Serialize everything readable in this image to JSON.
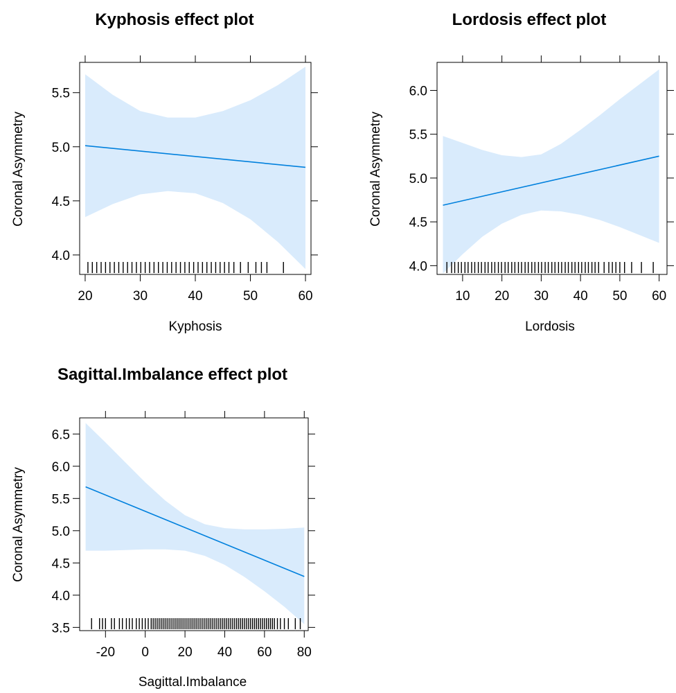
{
  "chart_data": [
    {
      "type": "line",
      "title": "Kyphosis effect plot",
      "xlabel": "Kyphosis",
      "ylabel": "Coronal Asymmetry",
      "xlim": [
        19,
        61
      ],
      "ylim": [
        3.82,
        5.78
      ],
      "xticks": [
        20,
        30,
        40,
        50,
        60
      ],
      "yticks": [
        4.0,
        4.5,
        5.0,
        5.5
      ],
      "ytick_labels": [
        "4.0",
        "4.5",
        "5.0",
        "5.5"
      ],
      "grid": false,
      "series": [
        {
          "x": [
            20,
            60
          ],
          "y": [
            5.01,
            4.81
          ]
        }
      ],
      "band": {
        "x": [
          20,
          25,
          30,
          35,
          40,
          45,
          50,
          55,
          60
        ],
        "lower": [
          4.35,
          4.47,
          4.56,
          4.59,
          4.57,
          4.48,
          4.33,
          4.12,
          3.87
        ],
        "upper": [
          5.67,
          5.48,
          5.33,
          5.27,
          5.27,
          5.33,
          5.43,
          5.57,
          5.74
        ]
      },
      "rug": [
        20.5,
        21.3,
        22.1,
        22.9,
        23.7,
        24.5,
        25.3,
        26.1,
        26.9,
        27.7,
        28.5,
        29.3,
        30.1,
        30.9,
        31.7,
        32.5,
        33.3,
        34.1,
        34.9,
        35.7,
        36.5,
        37.3,
        38.1,
        38.9,
        39.7,
        40.5,
        41.3,
        42.1,
        42.9,
        43.7,
        44.5,
        45.3,
        46.1,
        47.0,
        48.2,
        49.6,
        51.0,
        52.0,
        53.0,
        56.0
      ]
    },
    {
      "type": "line",
      "title": "Lordosis effect plot",
      "xlabel": "Lordosis",
      "ylabel": "Coronal Asymmetry",
      "xlim": [
        3.5,
        62
      ],
      "ylim": [
        3.9,
        6.32
      ],
      "xticks": [
        10,
        20,
        30,
        40,
        50,
        60
      ],
      "yticks": [
        4.0,
        4.5,
        5.0,
        5.5,
        6.0
      ],
      "ytick_labels": [
        "4.0",
        "4.5",
        "5.0",
        "5.5",
        "6.0"
      ],
      "grid": false,
      "series": [
        {
          "x": [
            5,
            60
          ],
          "y": [
            4.69,
            5.25
          ]
        }
      ],
      "band": {
        "x": [
          5,
          10,
          15,
          20,
          25,
          30,
          35,
          40,
          45,
          50,
          55,
          60
        ],
        "lower": [
          3.91,
          4.13,
          4.33,
          4.48,
          4.58,
          4.63,
          4.62,
          4.58,
          4.52,
          4.44,
          4.35,
          4.26
        ],
        "upper": [
          5.48,
          5.4,
          5.32,
          5.26,
          5.24,
          5.27,
          5.39,
          5.55,
          5.72,
          5.9,
          6.07,
          6.24
        ]
      },
      "rug": [
        6.0,
        7.2,
        8.0,
        8.9,
        9.7,
        10.6,
        11.4,
        12.3,
        13.1,
        14.0,
        14.8,
        15.7,
        16.5,
        17.4,
        18.2,
        19.1,
        19.9,
        20.8,
        21.6,
        22.5,
        23.3,
        24.2,
        25.0,
        25.9,
        26.7,
        27.6,
        28.4,
        29.3,
        30.1,
        31.0,
        31.8,
        32.7,
        33.5,
        34.4,
        35.2,
        36.1,
        36.9,
        37.8,
        38.6,
        39.5,
        40.3,
        41.2,
        42.0,
        42.9,
        43.7,
        44.6,
        46.0,
        47.2,
        48.1,
        49.0,
        50.0,
        51.2,
        53.0,
        55.5,
        58.5
      ]
    },
    {
      "type": "line",
      "title": "Sagittal.Imbalance effect plot",
      "xlabel": "Sagittal.Imbalance",
      "ylabel": "Coronal Asymmetry",
      "xlim": [
        -33,
        82
      ],
      "ylim": [
        3.45,
        6.75
      ],
      "xticks": [
        -20,
        0,
        20,
        40,
        60,
        80
      ],
      "yticks": [
        3.5,
        4.0,
        4.5,
        5.0,
        5.5,
        6.0,
        6.5
      ],
      "ytick_labels": [
        "3.5",
        "4.0",
        "4.5",
        "5.0",
        "5.5",
        "6.0",
        "6.5"
      ],
      "grid": false,
      "series": [
        {
          "x": [
            -30,
            80
          ],
          "y": [
            5.68,
            4.29
          ]
        }
      ],
      "band": {
        "x": [
          -30,
          -20,
          -10,
          0,
          10,
          20,
          30,
          40,
          50,
          60,
          70,
          80
        ],
        "lower": [
          4.69,
          4.69,
          4.7,
          4.71,
          4.71,
          4.69,
          4.61,
          4.47,
          4.28,
          4.06,
          3.82,
          3.55
        ],
        "upper": [
          6.67,
          6.37,
          6.06,
          5.75,
          5.47,
          5.24,
          5.1,
          5.04,
          5.02,
          5.02,
          5.03,
          5.05
        ]
      },
      "rug": [
        -27.0,
        -23.0,
        -21.5,
        -20.0,
        -17.0,
        -15.5,
        -13.0,
        -11.5,
        -9.5,
        -8.0,
        -6.5,
        -4.5,
        -3.0,
        -1.5,
        0.0,
        1.5,
        3.0,
        4.0,
        5.0,
        6.0,
        7.0,
        8.0,
        9.0,
        10.0,
        11.0,
        12.0,
        13.0,
        14.0,
        15.0,
        16.0,
        17.0,
        18.0,
        19.0,
        20.0,
        21.0,
        22.0,
        23.0,
        24.0,
        25.0,
        26.0,
        27.0,
        28.0,
        29.0,
        30.0,
        31.0,
        32.0,
        33.0,
        34.0,
        35.0,
        36.0,
        37.0,
        38.0,
        39.0,
        40.0,
        41.0,
        42.0,
        43.0,
        44.0,
        45.0,
        46.0,
        47.0,
        48.0,
        49.0,
        50.0,
        51.0,
        52.0,
        53.0,
        54.0,
        55.0,
        56.0,
        57.0,
        58.0,
        59.0,
        60.0,
        61.0,
        62.0,
        63.0,
        64.0,
        65.0,
        66.5,
        68.0,
        70.0,
        72.0,
        75.5,
        78.0
      ]
    }
  ],
  "colors": {
    "line": "#0080dd",
    "band": "#d9ebfc",
    "axis": "#000000"
  }
}
